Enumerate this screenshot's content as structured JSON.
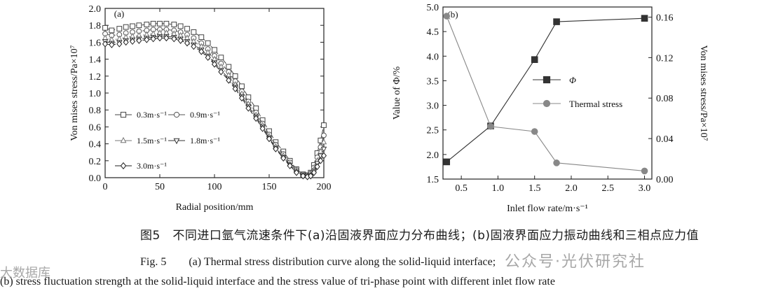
{
  "chart_data": [
    {
      "type": "line",
      "panel_label": "(a)",
      "xlabel": "Radial position/mm",
      "ylabel": "Von mises stress/Pa×10⁷",
      "xlim": [
        0,
        200
      ],
      "ylim": [
        0.0,
        2.0
      ],
      "xticks": [
        "0",
        "50",
        "100",
        "150",
        "200"
      ],
      "yticks": [
        "0.0",
        "0.2",
        "0.4",
        "0.6",
        "0.8",
        "1.0",
        "1.2",
        "1.4",
        "1.6",
        "1.8",
        "2.0"
      ],
      "grid": false,
      "legend_position": "center-left",
      "series": [
        {
          "name": "0.3m·s⁻¹",
          "marker": "square",
          "x": [
            0,
            6,
            13,
            19,
            25,
            31,
            38,
            44,
            50,
            56,
            63,
            69,
            75,
            81,
            88,
            94,
            100,
            106,
            113,
            119,
            125,
            131,
            138,
            144,
            150,
            156,
            163,
            169,
            175,
            181,
            185,
            188,
            191,
            194,
            197,
            200
          ],
          "y": [
            1.77,
            1.74,
            1.76,
            1.78,
            1.79,
            1.8,
            1.81,
            1.82,
            1.82,
            1.82,
            1.81,
            1.79,
            1.76,
            1.72,
            1.66,
            1.59,
            1.51,
            1.42,
            1.31,
            1.2,
            1.08,
            0.95,
            0.82,
            0.68,
            0.55,
            0.42,
            0.31,
            0.2,
            0.1,
            0.04,
            0.03,
            0.06,
            0.15,
            0.29,
            0.44,
            0.62
          ]
        },
        {
          "name": "0.9m·s⁻¹",
          "marker": "circle",
          "x": [
            0,
            6,
            13,
            19,
            25,
            31,
            38,
            44,
            50,
            56,
            63,
            69,
            75,
            81,
            88,
            94,
            100,
            106,
            113,
            119,
            125,
            131,
            138,
            144,
            150,
            156,
            163,
            169,
            175,
            181,
            185,
            188,
            191,
            194,
            197,
            200
          ],
          "y": [
            1.7,
            1.68,
            1.69,
            1.71,
            1.72,
            1.73,
            1.74,
            1.75,
            1.75,
            1.75,
            1.74,
            1.72,
            1.69,
            1.65,
            1.59,
            1.52,
            1.44,
            1.35,
            1.25,
            1.14,
            1.02,
            0.9,
            0.77,
            0.64,
            0.51,
            0.39,
            0.28,
            0.18,
            0.09,
            0.04,
            0.03,
            0.05,
            0.12,
            0.24,
            0.36,
            0.5
          ]
        },
        {
          "name": "1.5m·s⁻¹",
          "marker": "triangle-up",
          "x": [
            0,
            6,
            13,
            19,
            25,
            31,
            38,
            44,
            50,
            56,
            63,
            69,
            75,
            81,
            88,
            94,
            100,
            106,
            113,
            119,
            125,
            131,
            138,
            144,
            150,
            156,
            163,
            169,
            175,
            181,
            185,
            188,
            191,
            194,
            197,
            200
          ],
          "y": [
            1.65,
            1.63,
            1.64,
            1.66,
            1.67,
            1.68,
            1.69,
            1.7,
            1.71,
            1.71,
            1.7,
            1.68,
            1.65,
            1.61,
            1.55,
            1.48,
            1.4,
            1.31,
            1.21,
            1.1,
            0.99,
            0.87,
            0.74,
            0.62,
            0.49,
            0.37,
            0.26,
            0.16,
            0.08,
            0.03,
            0.02,
            0.04,
            0.1,
            0.2,
            0.31,
            0.42
          ]
        },
        {
          "name": "1.8m·s⁻¹",
          "marker": "triangle-down",
          "x": [
            0,
            6,
            13,
            19,
            25,
            31,
            38,
            44,
            50,
            56,
            63,
            69,
            75,
            81,
            88,
            94,
            100,
            106,
            113,
            119,
            125,
            131,
            138,
            144,
            150,
            156,
            163,
            169,
            175,
            181,
            185,
            188,
            191,
            194,
            197,
            200
          ],
          "y": [
            1.61,
            1.59,
            1.6,
            1.62,
            1.63,
            1.64,
            1.65,
            1.66,
            1.67,
            1.67,
            1.66,
            1.64,
            1.61,
            1.57,
            1.51,
            1.44,
            1.36,
            1.27,
            1.17,
            1.07,
            0.96,
            0.84,
            0.72,
            0.6,
            0.47,
            0.35,
            0.24,
            0.15,
            0.07,
            0.03,
            0.02,
            0.03,
            0.08,
            0.17,
            0.26,
            0.34
          ]
        },
        {
          "name": "3.0m·s⁻¹",
          "marker": "diamond",
          "x": [
            0,
            6,
            13,
            19,
            25,
            31,
            38,
            44,
            50,
            56,
            63,
            69,
            75,
            81,
            88,
            94,
            100,
            106,
            113,
            119,
            125,
            131,
            138,
            144,
            150,
            156,
            163,
            169,
            175,
            181,
            185,
            188,
            191,
            194,
            197,
            200
          ],
          "y": [
            1.58,
            1.57,
            1.58,
            1.6,
            1.61,
            1.62,
            1.63,
            1.64,
            1.65,
            1.65,
            1.64,
            1.62,
            1.59,
            1.55,
            1.49,
            1.42,
            1.34,
            1.25,
            1.15,
            1.05,
            0.94,
            0.82,
            0.7,
            0.58,
            0.46,
            0.34,
            0.23,
            0.14,
            0.06,
            0.02,
            0.01,
            0.02,
            0.06,
            0.13,
            0.2,
            0.26
          ]
        }
      ]
    },
    {
      "type": "line",
      "panel_label": "(b)",
      "xlabel": "Inlet flow rate/m·s⁻¹",
      "ylabel": "Value of Φ/%",
      "y2label": "Von mises stress/Pa×10⁷",
      "xlim": [
        0.25,
        3.1
      ],
      "ylim": [
        1.5,
        5.0
      ],
      "y2lim": [
        0.0,
        0.17
      ],
      "xticks": [
        "0.5",
        "1.0",
        "1.5",
        "2.0",
        "2.5",
        "3.0"
      ],
      "yticks": [
        "1.5",
        "2.0",
        "2.5",
        "3.0",
        "3.5",
        "4.0",
        "4.5",
        "5.0"
      ],
      "y2ticks": [
        "0.00",
        "0.04",
        "0.08",
        "0.12",
        "0.16"
      ],
      "grid": false,
      "legend_position": "right",
      "series": [
        {
          "name": "Φ",
          "axis": "left",
          "marker": "square",
          "x": [
            0.3,
            0.9,
            1.5,
            1.8,
            3.0
          ],
          "y": [
            1.85,
            2.58,
            3.93,
            4.7,
            4.77
          ]
        },
        {
          "name": "Thermal stress",
          "axis": "right",
          "marker": "circle",
          "x": [
            0.3,
            0.9,
            1.5,
            1.8,
            3.0
          ],
          "y": [
            0.161,
            0.052,
            0.047,
            0.016,
            0.008
          ]
        }
      ]
    }
  ],
  "caption": {
    "zh": "图5　不同进口氩气流速条件下(a)沿固液界面应力分布曲线；(b)固液界面应力振动曲线和三相点应力值",
    "en_line1": "Fig. 5　　(a) Thermal stress distribution curve along the solid-liquid interface;",
    "en_line2": "(b) stress fluctuation strength at the solid-liquid interface and the stress value of tri-phase point with different inlet flow rate"
  },
  "watermark": {
    "text1": "公众号·光伏研究社",
    "text2": "大数据库"
  }
}
